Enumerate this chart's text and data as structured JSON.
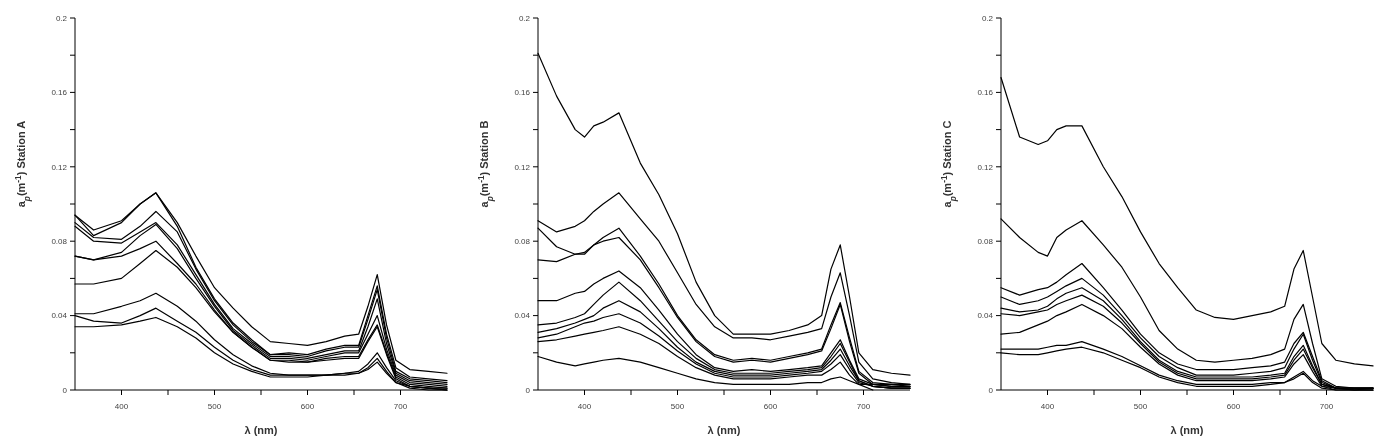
{
  "chart_data": [
    {
      "type": "line",
      "xlabel": "λ (nm)",
      "ylabel": "a$_{p}$(m$^{-1}$) Station A",
      "color": "#000000",
      "xlim": [
        350,
        750
      ],
      "ylim": [
        0,
        0.2
      ],
      "xticks": [
        400,
        {
          "value": 450,
          "label": null
        },
        500,
        {
          "value": 550,
          "label": null
        },
        600,
        {
          "value": 650,
          "label": null
        },
        700
      ],
      "yticks": [
        0,
        {
          "value": 0.02,
          "label": null
        },
        0.04,
        {
          "value": 0.06,
          "label": null
        },
        0.08,
        {
          "value": 0.1,
          "label": null
        },
        0.12,
        {
          "value": 0.14,
          "label": null
        },
        0.16,
        {
          "value": 0.18,
          "label": null
        },
        0.2
      ],
      "x": [
        350,
        370,
        400,
        420,
        437,
        460,
        480,
        500,
        520,
        540,
        560,
        580,
        600,
        620,
        640,
        655,
        665,
        675,
        685,
        695,
        710,
        730,
        750
      ],
      "series": [
        {
          "values": [
            0.094,
            0.086,
            0.091,
            0.1,
            0.106,
            0.09,
            0.072,
            0.055,
            0.044,
            0.034,
            0.026,
            0.025,
            0.024,
            0.026,
            0.029,
            0.03,
            0.045,
            0.062,
            0.035,
            0.016,
            0.011,
            0.01,
            0.009
          ]
        },
        {
          "values": [
            0.094,
            0.083,
            0.09,
            0.1,
            0.106,
            0.088,
            0.066,
            0.049,
            0.036,
            0.027,
            0.019,
            0.02,
            0.019,
            0.022,
            0.024,
            0.024,
            0.04,
            0.056,
            0.03,
            0.012,
            0.007,
            0.006,
            0.005
          ]
        },
        {
          "values": [
            0.09,
            0.082,
            0.081,
            0.088,
            0.096,
            0.085,
            0.065,
            0.048,
            0.035,
            0.026,
            0.019,
            0.019,
            0.018,
            0.021,
            0.023,
            0.023,
            0.038,
            0.054,
            0.028,
            0.01,
            0.006,
            0.005,
            0.004
          ]
        },
        {
          "values": [
            0.088,
            0.08,
            0.079,
            0.085,
            0.09,
            0.078,
            0.062,
            0.046,
            0.033,
            0.025,
            0.018,
            0.018,
            0.017,
            0.019,
            0.021,
            0.021,
            0.034,
            0.049,
            0.025,
            0.009,
            0.005,
            0.004,
            0.003
          ]
        },
        {
          "values": [
            0.072,
            0.07,
            0.074,
            0.083,
            0.089,
            0.076,
            0.06,
            0.045,
            0.032,
            0.024,
            0.017,
            0.017,
            0.016,
            0.018,
            0.02,
            0.02,
            0.03,
            0.04,
            0.022,
            0.008,
            0.004,
            0.003,
            0.002
          ]
        },
        {
          "values": [
            0.072,
            0.07,
            0.072,
            0.076,
            0.08,
            0.068,
            0.057,
            0.043,
            0.031,
            0.023,
            0.016,
            0.016,
            0.015,
            0.017,
            0.018,
            0.018,
            0.027,
            0.035,
            0.02,
            0.007,
            0.003,
            0.002,
            0.001
          ]
        },
        {
          "values": [
            0.057,
            0.057,
            0.06,
            0.068,
            0.075,
            0.066,
            0.055,
            0.042,
            0.031,
            0.023,
            0.016,
            0.015,
            0.015,
            0.016,
            0.017,
            0.017,
            0.026,
            0.034,
            0.019,
            0.006,
            0.002,
            0.001,
            0.0
          ]
        },
        {
          "values": [
            0.041,
            0.041,
            0.045,
            0.048,
            0.052,
            0.045,
            0.037,
            0.027,
            0.019,
            0.013,
            0.009,
            0.008,
            0.008,
            0.008,
            0.009,
            0.01,
            0.014,
            0.02,
            0.012,
            0.005,
            0.002,
            0.001,
            0.0
          ]
        },
        {
          "values": [
            0.04,
            0.037,
            0.036,
            0.04,
            0.044,
            0.037,
            0.031,
            0.023,
            0.016,
            0.011,
            0.008,
            0.008,
            0.008,
            0.008,
            0.009,
            0.009,
            0.012,
            0.017,
            0.01,
            0.004,
            0.001,
            0.0,
            0.0
          ]
        },
        {
          "values": [
            0.034,
            0.034,
            0.035,
            0.037,
            0.039,
            0.034,
            0.028,
            0.02,
            0.014,
            0.01,
            0.007,
            0.007,
            0.007,
            0.008,
            0.008,
            0.009,
            0.011,
            0.015,
            0.009,
            0.004,
            0.002,
            0.001,
            0.001
          ]
        }
      ]
    },
    {
      "type": "line",
      "xlabel": "λ (nm)",
      "ylabel": "a$_{p}$(m$^{-1}$) Station B",
      "color": "#000000",
      "xlim": [
        350,
        750
      ],
      "ylim": [
        0,
        0.2
      ],
      "xticks": [
        400,
        {
          "value": 450,
          "label": null
        },
        500,
        {
          "value": 550,
          "label": null
        },
        600,
        {
          "value": 650,
          "label": null
        },
        700
      ],
      "yticks": [
        0,
        {
          "value": 0.02,
          "label": null
        },
        0.04,
        {
          "value": 0.06,
          "label": null
        },
        0.08,
        {
          "value": 0.1,
          "label": null
        },
        0.12,
        {
          "value": 0.14,
          "label": null
        },
        0.16,
        {
          "value": 0.18,
          "label": null
        },
        0.2
      ],
      "x": [
        350,
        370,
        390,
        400,
        410,
        420,
        437,
        460,
        480,
        500,
        520,
        540,
        560,
        580,
        600,
        620,
        640,
        655,
        665,
        675,
        685,
        695,
        710,
        730,
        750
      ],
      "series": [
        {
          "values": [
            0.181,
            0.158,
            0.14,
            0.136,
            0.142,
            0.144,
            0.149,
            0.122,
            0.105,
            0.084,
            0.058,
            0.04,
            0.03,
            0.03,
            0.03,
            0.032,
            0.035,
            0.04,
            0.065,
            0.078,
            0.05,
            0.02,
            0.011,
            0.009,
            0.008
          ]
        },
        {
          "values": [
            0.091,
            0.085,
            0.088,
            0.091,
            0.096,
            0.1,
            0.106,
            0.092,
            0.08,
            0.063,
            0.046,
            0.034,
            0.028,
            0.028,
            0.027,
            0.029,
            0.031,
            0.033,
            0.05,
            0.063,
            0.04,
            0.015,
            0.006,
            0.004,
            0.003
          ]
        },
        {
          "values": [
            0.087,
            0.077,
            0.073,
            0.073,
            0.078,
            0.082,
            0.087,
            0.072,
            0.057,
            0.04,
            0.027,
            0.019,
            0.016,
            0.017,
            0.016,
            0.018,
            0.02,
            0.022,
            0.035,
            0.047,
            0.028,
            0.01,
            0.004,
            0.003,
            0.002
          ]
        },
        {
          "values": [
            0.07,
            0.069,
            0.073,
            0.074,
            0.078,
            0.08,
            0.082,
            0.07,
            0.055,
            0.039,
            0.026,
            0.018,
            0.015,
            0.016,
            0.015,
            0.017,
            0.019,
            0.021,
            0.033,
            0.046,
            0.026,
            0.009,
            0.003,
            0.002,
            0.002
          ]
        },
        {
          "values": [
            0.048,
            0.048,
            0.052,
            0.053,
            0.057,
            0.06,
            0.064,
            0.055,
            0.043,
            0.03,
            0.019,
            0.012,
            0.01,
            0.011,
            0.01,
            0.011,
            0.012,
            0.013,
            0.02,
            0.027,
            0.016,
            0.006,
            0.003,
            0.002,
            0.002
          ]
        },
        {
          "values": [
            0.035,
            0.036,
            0.039,
            0.041,
            0.046,
            0.051,
            0.058,
            0.048,
            0.037,
            0.026,
            0.017,
            0.011,
            0.009,
            0.009,
            0.009,
            0.01,
            0.011,
            0.012,
            0.018,
            0.025,
            0.015,
            0.005,
            0.002,
            0.001,
            0.001
          ]
        },
        {
          "values": [
            0.031,
            0.033,
            0.036,
            0.038,
            0.04,
            0.044,
            0.048,
            0.042,
            0.033,
            0.023,
            0.015,
            0.01,
            0.008,
            0.008,
            0.008,
            0.009,
            0.01,
            0.011,
            0.016,
            0.022,
            0.013,
            0.005,
            0.002,
            0.001,
            0.001
          ]
        },
        {
          "values": [
            0.028,
            0.03,
            0.034,
            0.036,
            0.037,
            0.039,
            0.041,
            0.036,
            0.029,
            0.021,
            0.014,
            0.009,
            0.007,
            0.007,
            0.007,
            0.008,
            0.009,
            0.01,
            0.014,
            0.019,
            0.011,
            0.004,
            0.002,
            0.001,
            0.001
          ]
        },
        {
          "values": [
            0.026,
            0.027,
            0.029,
            0.03,
            0.031,
            0.032,
            0.034,
            0.03,
            0.025,
            0.018,
            0.012,
            0.008,
            0.006,
            0.006,
            0.006,
            0.007,
            0.008,
            0.008,
            0.011,
            0.015,
            0.008,
            0.003,
            0.0,
            null,
            null
          ]
        },
        {
          "values": [
            0.018,
            0.015,
            0.013,
            0.014,
            0.015,
            0.016,
            0.017,
            0.015,
            0.012,
            0.009,
            0.006,
            0.004,
            0.003,
            0.003,
            0.003,
            0.003,
            0.004,
            0.004,
            0.006,
            0.007,
            0.005,
            0.003,
            0.003,
            0.003,
            0.003
          ]
        }
      ]
    },
    {
      "type": "line",
      "xlabel": "λ (nm)",
      "ylabel": "a$_{p}$(m$^{-1}$) Station C",
      "color": "#000000",
      "xlim": [
        350,
        750
      ],
      "ylim": [
        0,
        0.2
      ],
      "xticks": [
        400,
        {
          "value": 450,
          "label": null
        },
        500,
        {
          "value": 550,
          "label": null
        },
        600,
        {
          "value": 650,
          "label": null
        },
        700
      ],
      "yticks": [
        0,
        {
          "value": 0.02,
          "label": null
        },
        0.04,
        {
          "value": 0.06,
          "label": null
        },
        0.08,
        {
          "value": 0.1,
          "label": null
        },
        0.12,
        {
          "value": 0.14,
          "label": null
        },
        0.16,
        {
          "value": 0.18,
          "label": null
        },
        0.2
      ],
      "x": [
        350,
        370,
        390,
        400,
        410,
        420,
        437,
        460,
        480,
        500,
        520,
        540,
        560,
        580,
        600,
        620,
        640,
        655,
        665,
        675,
        685,
        695,
        710,
        730,
        750
      ],
      "series": [
        {
          "values": [
            0.168,
            0.136,
            0.132,
            0.134,
            0.14,
            0.142,
            0.142,
            0.12,
            0.104,
            0.085,
            0.068,
            0.055,
            0.043,
            0.039,
            0.038,
            0.04,
            0.042,
            0.045,
            0.065,
            0.075,
            0.05,
            0.025,
            0.016,
            0.014,
            0.013
          ]
        },
        {
          "values": [
            0.092,
            0.082,
            0.074,
            0.072,
            0.082,
            0.086,
            0.091,
            0.078,
            0.066,
            0.05,
            0.032,
            0.022,
            0.016,
            0.015,
            0.016,
            0.017,
            0.019,
            0.022,
            0.038,
            0.046,
            0.025,
            0.006,
            0.002,
            0.001,
            0.001
          ]
        },
        {
          "values": [
            0.055,
            0.051,
            0.054,
            0.055,
            0.058,
            0.062,
            0.068,
            0.055,
            0.043,
            0.03,
            0.02,
            0.014,
            0.011,
            0.011,
            0.011,
            0.012,
            0.013,
            0.015,
            0.025,
            0.031,
            0.018,
            0.005,
            0.001,
            0.001,
            0.001
          ]
        },
        {
          "values": [
            0.05,
            0.046,
            0.048,
            0.05,
            0.053,
            0.056,
            0.06,
            0.051,
            0.04,
            0.028,
            0.018,
            0.012,
            0.008,
            0.008,
            0.008,
            0.009,
            0.01,
            0.012,
            0.022,
            0.03,
            0.016,
            0.004,
            0.001,
            0.001,
            0.001
          ]
        },
        {
          "values": [
            0.044,
            0.042,
            0.043,
            0.045,
            0.049,
            0.052,
            0.055,
            0.048,
            0.038,
            0.026,
            0.016,
            0.01,
            0.007,
            0.007,
            0.007,
            0.007,
            0.008,
            0.009,
            0.018,
            0.024,
            0.013,
            0.003,
            0.001,
            0.0,
            0.001
          ]
        },
        {
          "values": [
            0.041,
            0.04,
            0.042,
            0.043,
            0.046,
            0.048,
            0.051,
            0.045,
            0.036,
            0.025,
            0.015,
            0.009,
            0.006,
            0.006,
            0.006,
            0.006,
            0.007,
            0.008,
            0.016,
            0.022,
            0.012,
            0.003,
            0.001,
            0.0,
            0.0
          ]
        },
        {
          "values": [
            0.03,
            0.031,
            0.035,
            0.037,
            0.04,
            0.042,
            0.046,
            0.04,
            0.033,
            0.023,
            0.014,
            0.008,
            0.005,
            0.005,
            0.005,
            0.005,
            0.006,
            0.007,
            0.014,
            0.019,
            0.01,
            0.002,
            0.0,
            0.0,
            0.0
          ]
        },
        {
          "values": [
            0.022,
            0.022,
            0.022,
            0.023,
            0.024,
            0.024,
            0.026,
            0.022,
            0.018,
            0.013,
            0.008,
            0.005,
            0.003,
            0.003,
            0.003,
            0.003,
            0.004,
            0.004,
            0.007,
            0.01,
            0.005,
            0.002,
            0.001,
            0.001,
            0.001
          ]
        },
        {
          "values": [
            0.02,
            0.019,
            0.019,
            0.02,
            0.021,
            0.022,
            0.023,
            0.02,
            0.016,
            0.012,
            0.007,
            0.004,
            0.002,
            0.002,
            0.002,
            0.002,
            0.003,
            0.004,
            0.006,
            0.009,
            0.004,
            0.001,
            0.0,
            0.0,
            0.0
          ]
        }
      ]
    }
  ]
}
